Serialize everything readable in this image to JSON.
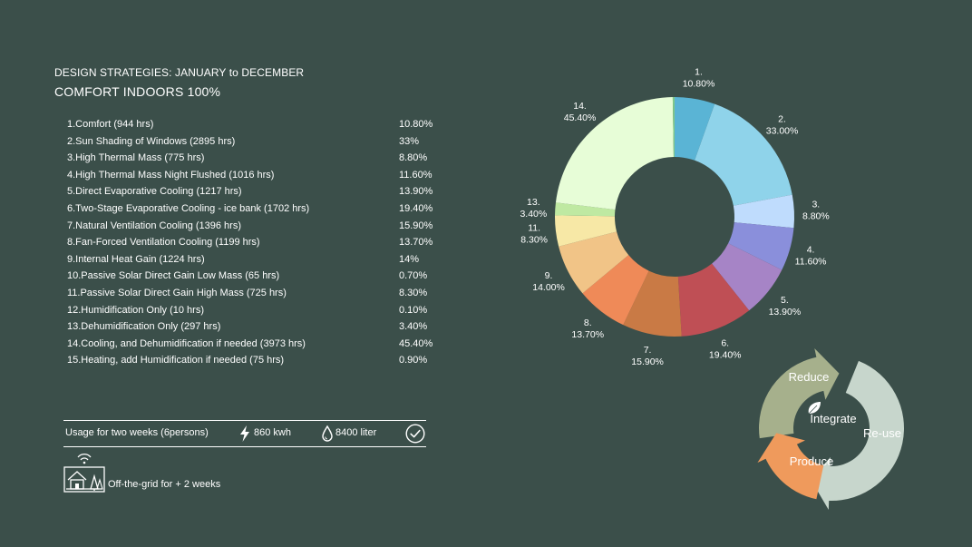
{
  "header": {
    "subtitle": "DESIGN STRATEGIES: JANUARY to DECEMBER",
    "title": "COMFORT INDOORS 100%"
  },
  "strategies": [
    {
      "label": "1.Comfort (944 hrs)",
      "pct": "10.80%"
    },
    {
      "label": "2.Sun Shading of Windows (2895 hrs)",
      "pct": "33%"
    },
    {
      "label": "3.High Thermal Mass (775 hrs)",
      "pct": "8.80%"
    },
    {
      "label": "4.High Thermal Mass Night Flushed (1016 hrs)",
      "pct": "11.60%"
    },
    {
      "label": "5.Direct Evaporative Cooling (1217 hrs)",
      "pct": "13.90%"
    },
    {
      "label": "6.Two-Stage Evaporative Cooling - ice bank (1702 hrs)",
      "pct": "19.40%"
    },
    {
      "label": "7.Natural Ventilation Cooling (1396 hrs)",
      "pct": "15.90%"
    },
    {
      "label": "8.Fan-Forced Ventilation Cooling (1199 hrs)",
      "pct": "13.70%"
    },
    {
      "label": "9.Internal Heat Gain (1224 hrs)",
      "pct": "14%"
    },
    {
      "label": "10.Passive Solar Direct Gain Low Mass (65 hrs)",
      "pct": "0.70%"
    },
    {
      "label": "11.Passive Solar Direct Gain High Mass (725 hrs)",
      "pct": "8.30%"
    },
    {
      "label": "12.Humidification Only (10 hrs)",
      "pct": "0.10%"
    },
    {
      "label": "13.Dehumidification Only (297 hrs)",
      "pct": "3.40%"
    },
    {
      "label": "14.Cooling, and Dehumidification if needed (3973 hrs)",
      "pct": "45.40%"
    },
    {
      "label": "15.Heating, add Humidification if needed (75 hrs)",
      "pct": "0.90%"
    }
  ],
  "usage": {
    "text": "Usage for two weeks (6persons)",
    "energy": "860 kwh",
    "water": "8400 liter",
    "energy_icon": "lightning-icon",
    "water_icon": "water-drop-icon",
    "check_icon": "check-circle-icon"
  },
  "offgrid": {
    "text": "Off-the-grid for + 2 weeks",
    "icon": "house-icon"
  },
  "chart_data": {
    "type": "pie",
    "donut": true,
    "slices": [
      {
        "number": "1.",
        "label": "10.80%",
        "value": 10.8,
        "color": "#5ab4d5"
      },
      {
        "number": "2.",
        "label": "33.00%",
        "value": 33.0,
        "color": "#8fd3ea"
      },
      {
        "number": "3.",
        "label": "8.80%",
        "value": 8.8,
        "color": "#bfdcfd"
      },
      {
        "number": "4.",
        "label": "11.60%",
        "value": 11.6,
        "color": "#8a8fdb"
      },
      {
        "number": "5.",
        "label": "13.90%",
        "value": 13.9,
        "color": "#a684c6"
      },
      {
        "number": "6.",
        "label": "19.40%",
        "value": 19.4,
        "color": "#bf4f55"
      },
      {
        "number": "7.",
        "label": "15.90%",
        "value": 15.9,
        "color": "#c97a45"
      },
      {
        "number": "8.",
        "label": "13.70%",
        "value": 13.7,
        "color": "#ef8a58"
      },
      {
        "number": "9.",
        "label": "14.00%",
        "value": 14.0,
        "color": "#f1c487"
      },
      {
        "number": "11.",
        "label": "8.30%",
        "value": 8.3,
        "color": "#f7e8a6"
      },
      {
        "number": "13.",
        "label": "3.40%",
        "value": 3.4,
        "color": "#bfe9a2"
      },
      {
        "number": "14.",
        "label": "45.40%",
        "value": 45.4,
        "color": "#e7fdd7"
      },
      {
        "number": "",
        "label": "",
        "value": 0.5,
        "color": "#7fc88a"
      }
    ]
  },
  "cycle": {
    "center": "Integrate",
    "segments": [
      {
        "label": "Reduce",
        "color": "#a6b08c"
      },
      {
        "label": "Re-use",
        "color": "#c7d6cc"
      },
      {
        "label": "Produce",
        "color": "#ef9a5c"
      }
    ],
    "leaf_icon": "leaf-icon"
  }
}
